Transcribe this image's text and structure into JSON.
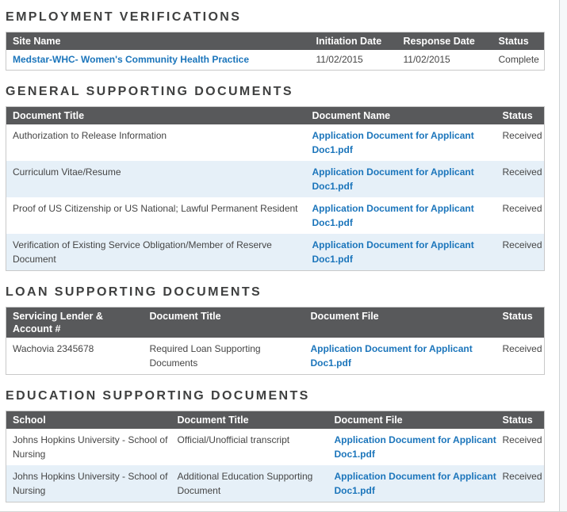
{
  "colors": {
    "table_header_bg": "#58595b",
    "link_blue": "#1b75bb",
    "alt_row_bg": "#e6f0f8",
    "table_border": "#c9c9c9",
    "section_title": "#3f4040"
  },
  "sections": [
    {
      "id": "employment-verifications",
      "title": "EMPLOYMENT VERIFICATIONS",
      "headers": [
        "Site Name",
        "Initiation Date",
        "Response Date",
        "Status"
      ],
      "rows": [
        [
          "Medstar-WHC- Women's Community Health Practice",
          "11/02/2015",
          "11/02/2015",
          "Complete"
        ]
      ]
    },
    {
      "id": "general-supporting-documents",
      "title": "GENERAL SUPPORTING DOCUMENTS",
      "headers": [
        "Document Title",
        "Document Name",
        "Status"
      ],
      "rows": [
        [
          "Authorization to Release Information",
          "Application Document for Applicant\nDoc1.pdf",
          "Received"
        ],
        [
          "Curriculum Vitae/Resume",
          "Application Document for Applicant\nDoc1.pdf",
          "Received"
        ],
        [
          "Proof of US Citizenship or US National; Lawful Permanent Resident",
          "Application Document for Applicant\nDoc1.pdf",
          "Received"
        ],
        [
          "Verification of Existing Service Obligation/Member of Reserve\nDocument",
          "Application Document for Applicant\nDoc1.pdf",
          "Received"
        ]
      ]
    },
    {
      "id": "loan-supporting-documents",
      "title": "LOAN SUPPORTING DOCUMENTS",
      "headers": [
        "Servicing Lender & Account #",
        "Document Title",
        "Document File",
        "Status"
      ],
      "rows": [
        [
          "Wachovia 2345678",
          "Required Loan Supporting\nDocuments",
          "Application Document for Applicant\nDoc1.pdf",
          "Received"
        ]
      ]
    },
    {
      "id": "education-supporting-documents",
      "title": "EDUCATION SUPPORTING DOCUMENTS",
      "headers": [
        "School",
        "Document Title",
        "Document File",
        "Status"
      ],
      "rows": [
        [
          "Johns Hopkins University - School of\nNursing",
          "Official/Unofficial transcript",
          "Application Document for Applicant\nDoc1.pdf",
          "Received"
        ],
        [
          "Johns Hopkins University - School of\nNursing",
          "Additional Education Supporting\nDocument",
          "Application Document for Applicant\nDoc1.pdf",
          "Received"
        ]
      ]
    }
  ]
}
